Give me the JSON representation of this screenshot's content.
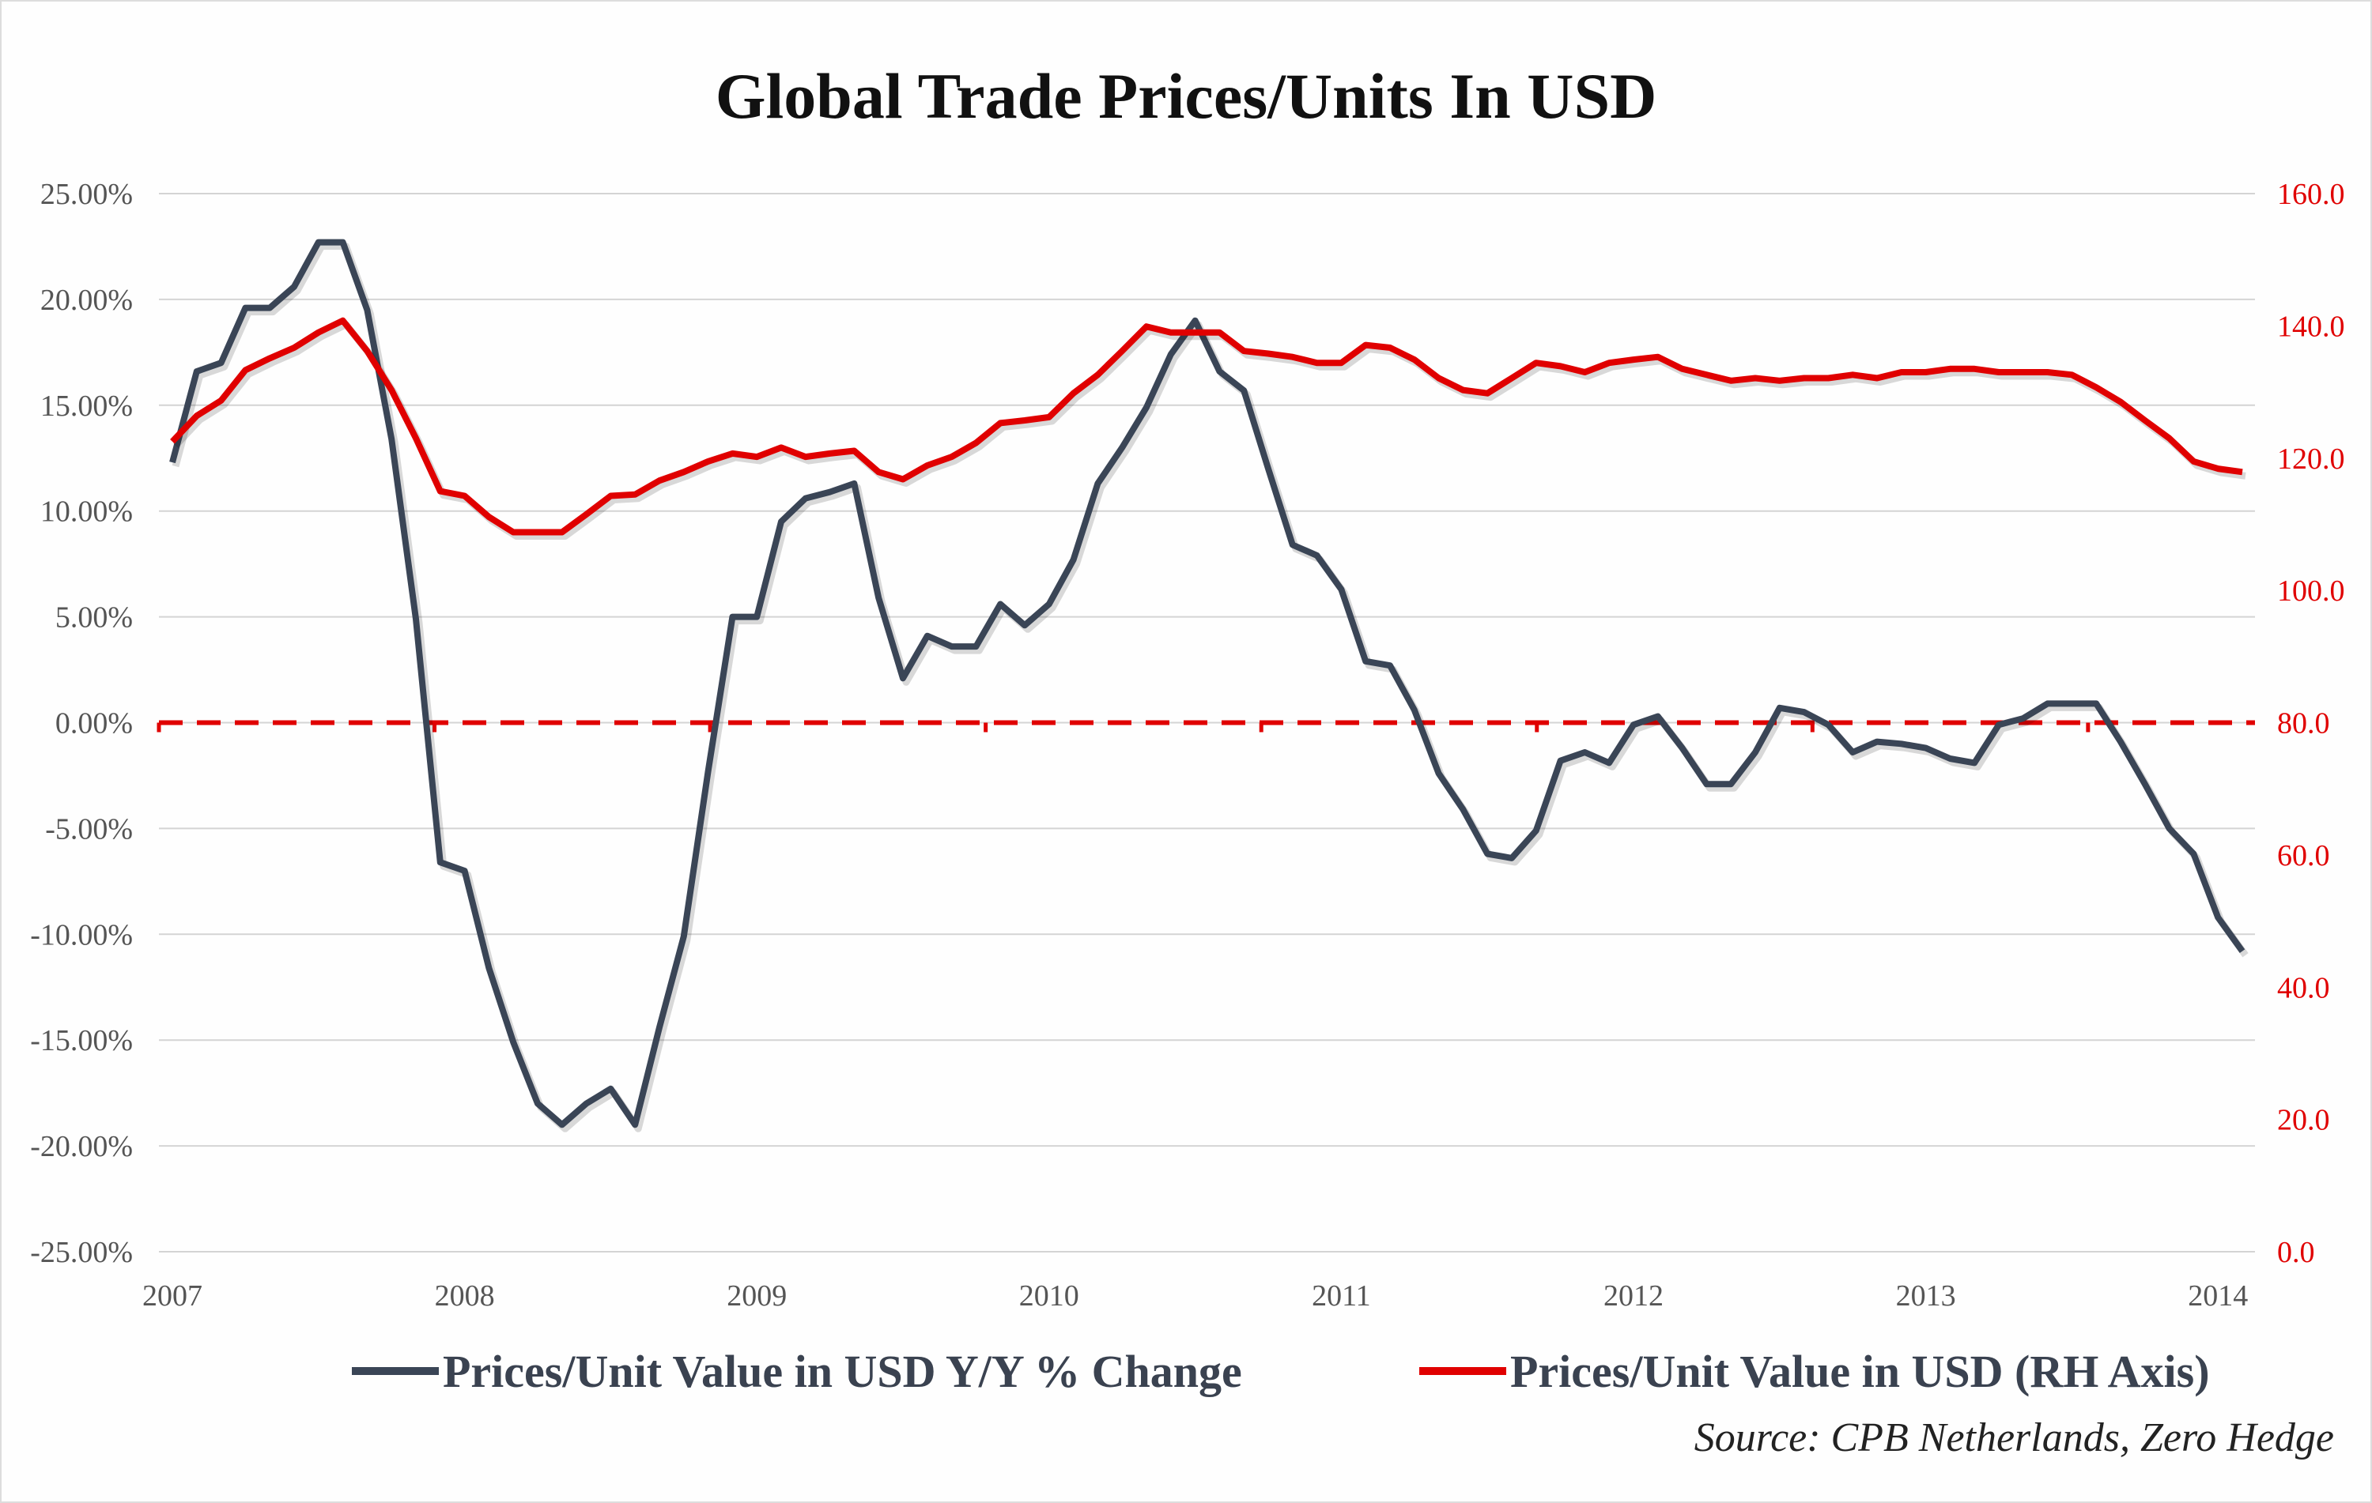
{
  "chart_data": {
    "type": "line",
    "title": "Global Trade Prices/Units In USD",
    "source": "Source: CPB Netherlands, Zero Hedge",
    "x_start": "2007-01",
    "x_frequency": "monthly",
    "x_tick_labels": [
      "2007",
      "2008",
      "2009",
      "2010",
      "2011",
      "2012",
      "2013",
      "2014"
    ],
    "y_left": {
      "range": [
        -25,
        25
      ],
      "tick_labels": [
        "25.00%",
        "20.00%",
        "15.00%",
        "10.00%",
        "5.00%",
        "0.00%",
        "-5.00%",
        "-10.00%",
        "-15.00%",
        "-20.00%",
        "-25.00%"
      ]
    },
    "y_right": {
      "range": [
        0,
        160
      ],
      "tick_labels": [
        "160.0",
        "140.0",
        "120.0",
        "100.0",
        "80.0",
        "60.0",
        "40.0",
        "20.0",
        "0.0"
      ]
    },
    "grid": true,
    "legend_position": "bottom",
    "zero_line": {
      "axis": "left",
      "value": 0,
      "style": "dashed",
      "color": "#e00000"
    },
    "series": [
      {
        "name": "Prices/Unit Value in USD Y/Y % Change",
        "axis": "left",
        "color": "#3a4556",
        "values": [
          12.3,
          16.6,
          17,
          19.6,
          19.6,
          20.6,
          22.7,
          22.7,
          19.5,
          13.4,
          4.9,
          -6.6,
          -7,
          -11.6,
          -15.1,
          -18,
          -19,
          -18,
          -17.3,
          -19,
          -14.4,
          -10.1,
          -2.3,
          5,
          5,
          9.5,
          10.6,
          10.9,
          11.3,
          5.9,
          2.1,
          4.1,
          3.6,
          3.6,
          5.6,
          4.6,
          5.6,
          7.7,
          11.3,
          13,
          14.9,
          17.4,
          19,
          16.6,
          15.7,
          12,
          8.4,
          7.9,
          6.3,
          2.9,
          2.7,
          0.6,
          -2.4,
          -4.1,
          -6.2,
          -6.4,
          -5.1,
          -1.8,
          -1.4,
          -1.9,
          -0.1,
          0.3,
          -1.2,
          -2.9,
          -2.9,
          -1.4,
          0.7,
          0.5,
          -0.1,
          -1.4,
          -0.9,
          -1,
          -1.2,
          -1.7,
          -1.9,
          -0.1,
          0.2,
          0.9,
          0.9,
          0.9,
          -0.9,
          -2.9,
          -5,
          -6.2,
          -9.2,
          -10.8
        ]
      },
      {
        "name": "Prices/Unit Value in USD (RH Axis)",
        "axis": "right",
        "color": "#e00000",
        "values": [
          122.5,
          126.4,
          128.7,
          133.3,
          135.1,
          136.7,
          139,
          140.8,
          136.2,
          130.3,
          123,
          115,
          114.3,
          111.1,
          108.8,
          108.8,
          108.8,
          111.5,
          114.3,
          114.5,
          116.6,
          117.9,
          119.5,
          120.7,
          120.2,
          121.6,
          120.2,
          120.7,
          121.1,
          117.9,
          116.8,
          118.9,
          120.2,
          122.3,
          125.3,
          125.7,
          126.2,
          129.8,
          132.6,
          136.2,
          139.9,
          139,
          139,
          139,
          136.2,
          135.8,
          135.3,
          134.4,
          134.4,
          137.1,
          136.7,
          134.9,
          132.1,
          130.3,
          129.8,
          132.1,
          134.4,
          133.9,
          133,
          134.4,
          134.9,
          135.3,
          133.5,
          132.6,
          131.7,
          132.1,
          131.7,
          132.1,
          132.1,
          132.6,
          132.1,
          133,
          133,
          133.5,
          133.5,
          133,
          133,
          133,
          132.6,
          130.7,
          128.5,
          125.7,
          123,
          119.5,
          118.4,
          117.9
        ]
      }
    ]
  }
}
